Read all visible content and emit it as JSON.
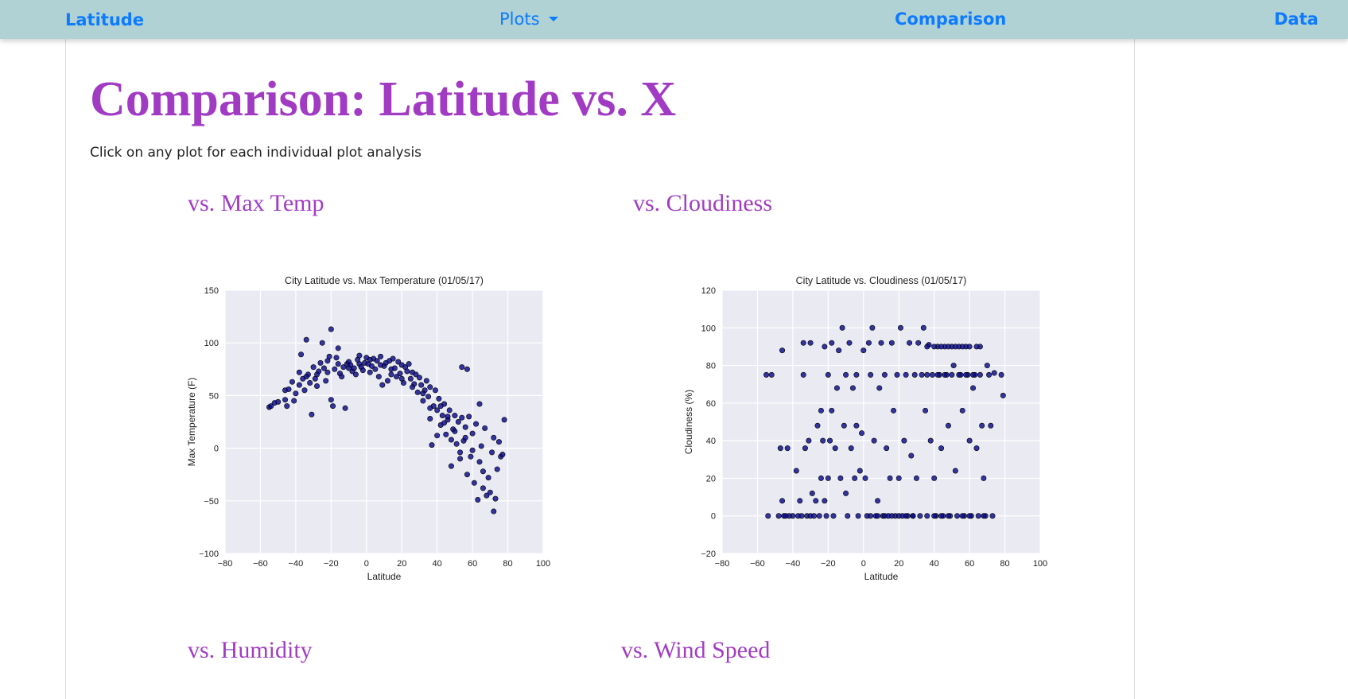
{
  "nav": {
    "brand": "Latitude",
    "plots_label": "Plots",
    "comparison_label": "Comparison",
    "data_label": "Data"
  },
  "main": {
    "title": "Comparison: Latitude vs. X",
    "subtitle": "Click on any plot for each individual plot analysis",
    "headings": [
      "vs. Max Temp",
      "vs. Cloudiness",
      "vs. Humidity",
      "vs. Wind Speed"
    ]
  },
  "colors": {
    "navbar_bg": "#b0d2d4",
    "link": "#0d7bff",
    "heading_purple": "#a23bc4",
    "plot_bg": "#eaeaf2",
    "marker": "#0b0b8c"
  },
  "chart_data": [
    {
      "type": "scatter",
      "title": "City Latitude vs. Max Temperature (01/05/17)",
      "xlabel": "Latitude",
      "ylabel": "Max Temperature (F)",
      "xlim": [
        -80,
        100
      ],
      "ylim": [
        -100,
        150
      ],
      "xticks": [
        -80,
        -60,
        -40,
        -20,
        0,
        20,
        40,
        60,
        80,
        100
      ],
      "yticks": [
        -100,
        -50,
        0,
        50,
        100,
        150
      ],
      "grid": true,
      "points": [
        [
          -55,
          39
        ],
        [
          -54,
          40
        ],
        [
          -52,
          43
        ],
        [
          -50,
          44
        ],
        [
          -46,
          55
        ],
        [
          -46,
          46
        ],
        [
          -45,
          40
        ],
        [
          -44,
          56
        ],
        [
          -42,
          63
        ],
        [
          -41,
          45
        ],
        [
          -40,
          52
        ],
        [
          -38,
          60
        ],
        [
          -37,
          89
        ],
        [
          -36,
          66
        ],
        [
          -35,
          55
        ],
        [
          -34,
          103
        ],
        [
          -33,
          70
        ],
        [
          -32,
          62
        ],
        [
          -31,
          32
        ],
        [
          -30,
          77
        ],
        [
          -29,
          66
        ],
        [
          -28,
          59
        ],
        [
          -27,
          73
        ],
        [
          -26,
          81
        ],
        [
          -25,
          100
        ],
        [
          -24,
          76
        ],
        [
          -23,
          64
        ],
        [
          -22,
          83
        ],
        [
          -21,
          87
        ],
        [
          -20,
          113
        ],
        [
          -20,
          46
        ],
        [
          -19,
          40
        ],
        [
          -18,
          75
        ],
        [
          -17,
          86
        ],
        [
          -16,
          95
        ],
        [
          -15,
          71
        ],
        [
          -14,
          68
        ],
        [
          -13,
          77
        ],
        [
          -12,
          38
        ],
        [
          -11,
          80
        ],
        [
          -10,
          82
        ],
        [
          -9,
          79
        ],
        [
          -8,
          73
        ],
        [
          -7,
          76
        ],
        [
          -6,
          70
        ],
        [
          -5,
          84
        ],
        [
          -4,
          80
        ],
        [
          -3,
          77
        ],
        [
          -2,
          74
        ],
        [
          -1,
          81
        ],
        [
          0,
          86
        ],
        [
          1,
          80
        ],
        [
          2,
          72
        ],
        [
          3,
          78
        ],
        [
          4,
          85
        ],
        [
          5,
          75
        ],
        [
          6,
          83
        ],
        [
          7,
          68
        ],
        [
          8,
          87
        ],
        [
          9,
          60
        ],
        [
          10,
          78
        ],
        [
          11,
          81
        ],
        [
          12,
          64
        ],
        [
          13,
          83
        ],
        [
          14,
          70
        ],
        [
          15,
          85
        ],
        [
          16,
          76
        ],
        [
          17,
          68
        ],
        [
          18,
          82
        ],
        [
          19,
          71
        ],
        [
          20,
          79
        ],
        [
          21,
          62
        ],
        [
          22,
          77
        ],
        [
          23,
          73
        ],
        [
          24,
          80
        ],
        [
          25,
          66
        ],
        [
          26,
          72
        ],
        [
          27,
          61
        ],
        [
          28,
          70
        ],
        [
          29,
          53
        ],
        [
          30,
          67
        ],
        [
          31,
          60
        ],
        [
          32,
          45
        ],
        [
          33,
          55
        ],
        [
          34,
          64
        ],
        [
          35,
          49
        ],
        [
          36,
          28
        ],
        [
          36,
          58
        ],
        [
          37,
          3
        ],
        [
          38,
          40
        ],
        [
          39,
          55
        ],
        [
          40,
          36
        ],
        [
          41,
          47
        ],
        [
          42,
          22
        ],
        [
          43,
          31
        ],
        [
          44,
          42
        ],
        [
          45,
          13
        ],
        [
          46,
          27
        ],
        [
          47,
          36
        ],
        [
          48,
          -17
        ],
        [
          49,
          18
        ],
        [
          50,
          31
        ],
        [
          51,
          4
        ],
        [
          52,
          25
        ],
        [
          53,
          -10
        ],
        [
          54,
          29
        ],
        [
          54,
          77
        ],
        [
          55,
          7
        ],
        [
          56,
          20
        ],
        [
          57,
          -25
        ],
        [
          57,
          75
        ],
        [
          58,
          30
        ],
        [
          59,
          -8
        ],
        [
          60,
          14
        ],
        [
          61,
          -33
        ],
        [
          62,
          23
        ],
        [
          63,
          -49
        ],
        [
          64,
          -13
        ],
        [
          64,
          42
        ],
        [
          65,
          2
        ],
        [
          66,
          -38
        ],
        [
          67,
          19
        ],
        [
          68,
          -45
        ],
        [
          69,
          -28
        ],
        [
          70,
          -42
        ],
        [
          71,
          -4
        ],
        [
          72,
          -60
        ],
        [
          72,
          10
        ],
        [
          73,
          -48
        ],
        [
          74,
          -20
        ],
        [
          75,
          6
        ],
        [
          76,
          -8
        ],
        [
          78,
          27
        ],
        [
          77,
          -6
        ],
        [
          53,
          -4
        ],
        [
          48,
          8
        ],
        [
          44,
          24
        ],
        [
          40,
          12
        ],
        [
          36,
          38
        ],
        [
          32,
          52
        ],
        [
          26,
          58
        ],
        [
          20,
          66
        ],
        [
          14,
          75
        ],
        [
          8,
          79
        ],
        [
          2,
          84
        ],
        [
          -4,
          88
        ],
        [
          -10,
          76
        ],
        [
          -16,
          80
        ],
        [
          -22,
          72
        ],
        [
          -28,
          70
        ],
        [
          -34,
          68
        ],
        [
          -38,
          72
        ],
        [
          66,
          -22
        ],
        [
          60,
          -2
        ],
        [
          56,
          10
        ],
        [
          50,
          16
        ],
        [
          46,
          30
        ],
        [
          42,
          40
        ]
      ]
    },
    {
      "type": "scatter",
      "title": "City Latitude vs. Cloudiness (01/05/17)",
      "xlabel": "Latitude",
      "ylabel": "Cloudiness (%)",
      "xlim": [
        -80,
        100
      ],
      "ylim": [
        -20,
        120
      ],
      "xticks": [
        -80,
        -60,
        -40,
        -20,
        0,
        20,
        40,
        60,
        80,
        100
      ],
      "yticks": [
        -20,
        0,
        20,
        40,
        60,
        80,
        100,
        120
      ],
      "grid": true,
      "points": [
        [
          -54,
          0
        ],
        [
          -55,
          75
        ],
        [
          -52,
          75
        ],
        [
          -47,
          36
        ],
        [
          -46,
          88
        ],
        [
          -46,
          8
        ],
        [
          -45,
          0
        ],
        [
          -43,
          36
        ],
        [
          -42,
          0
        ],
        [
          -40,
          0
        ],
        [
          -38,
          24
        ],
        [
          -37,
          0
        ],
        [
          -36,
          8
        ],
        [
          -35,
          0
        ],
        [
          -34,
          92
        ],
        [
          -34,
          75
        ],
        [
          -33,
          36
        ],
        [
          -32,
          0
        ],
        [
          -31,
          40
        ],
        [
          -30,
          0
        ],
        [
          -30,
          92
        ],
        [
          -29,
          12
        ],
        [
          -28,
          0
        ],
        [
          -27,
          8
        ],
        [
          -26,
          48
        ],
        [
          -25,
          0
        ],
        [
          -24,
          20
        ],
        [
          -24,
          56
        ],
        [
          -23,
          40
        ],
        [
          -22,
          8
        ],
        [
          -22,
          90
        ],
        [
          -21,
          0
        ],
        [
          -20,
          20
        ],
        [
          -20,
          75
        ],
        [
          -19,
          40
        ],
        [
          -18,
          56
        ],
        [
          -18,
          92
        ],
        [
          -17,
          0
        ],
        [
          -16,
          36
        ],
        [
          -15,
          68
        ],
        [
          -14,
          88
        ],
        [
          -13,
          20
        ],
        [
          -12,
          100
        ],
        [
          -11,
          48
        ],
        [
          -10,
          12
        ],
        [
          -10,
          75
        ],
        [
          -9,
          0
        ],
        [
          -8,
          92
        ],
        [
          -7,
          36
        ],
        [
          -6,
          68
        ],
        [
          -5,
          20
        ],
        [
          -4,
          48
        ],
        [
          -4,
          75
        ],
        [
          -3,
          0
        ],
        [
          -2,
          24
        ],
        [
          -1,
          44
        ],
        [
          0,
          88
        ],
        [
          1,
          20
        ],
        [
          2,
          0
        ],
        [
          3,
          92
        ],
        [
          4,
          75
        ],
        [
          5,
          100
        ],
        [
          6,
          40
        ],
        [
          7,
          0
        ],
        [
          8,
          8
        ],
        [
          9,
          68
        ],
        [
          10,
          92
        ],
        [
          11,
          0
        ],
        [
          12,
          75
        ],
        [
          13,
          36
        ],
        [
          14,
          0
        ],
        [
          15,
          20
        ],
        [
          16,
          92
        ],
        [
          17,
          56
        ],
        [
          18,
          0
        ],
        [
          19,
          75
        ],
        [
          20,
          20
        ],
        [
          21,
          100
        ],
        [
          22,
          0
        ],
        [
          23,
          40
        ],
        [
          24,
          75
        ],
        [
          25,
          0
        ],
        [
          26,
          92
        ],
        [
          27,
          32
        ],
        [
          28,
          0
        ],
        [
          29,
          75
        ],
        [
          30,
          20
        ],
        [
          31,
          92
        ],
        [
          32,
          0
        ],
        [
          33,
          75
        ],
        [
          34,
          100
        ],
        [
          35,
          56
        ],
        [
          36,
          0
        ],
        [
          37,
          91
        ],
        [
          38,
          40
        ],
        [
          39,
          75
        ],
        [
          40,
          20
        ],
        [
          41,
          0
        ],
        [
          42,
          90
        ],
        [
          43,
          75
        ],
        [
          44,
          36
        ],
        [
          45,
          0
        ],
        [
          46,
          90
        ],
        [
          47,
          75
        ],
        [
          48,
          48
        ],
        [
          49,
          0
        ],
        [
          50,
          90
        ],
        [
          51,
          80
        ],
        [
          52,
          24
        ],
        [
          53,
          0
        ],
        [
          54,
          90
        ],
        [
          55,
          75
        ],
        [
          56,
          56
        ],
        [
          57,
          0
        ],
        [
          58,
          90
        ],
        [
          59,
          75
        ],
        [
          60,
          40
        ],
        [
          61,
          0
        ],
        [
          62,
          68
        ],
        [
          63,
          75
        ],
        [
          64,
          36
        ],
        [
          65,
          0
        ],
        [
          66,
          90
        ],
        [
          67,
          48
        ],
        [
          68,
          20
        ],
        [
          69,
          0
        ],
        [
          70,
          80
        ],
        [
          71,
          75
        ],
        [
          72,
          48
        ],
        [
          73,
          0
        ],
        [
          74,
          76
        ],
        [
          78,
          75
        ],
        [
          79,
          64
        ],
        [
          -44,
          0
        ],
        [
          -48,
          0
        ],
        [
          4,
          0
        ],
        [
          8,
          0
        ],
        [
          12,
          0
        ],
        [
          16,
          0
        ],
        [
          20,
          0
        ],
        [
          24,
          0
        ],
        [
          28,
          0
        ],
        [
          40,
          0
        ],
        [
          44,
          0
        ],
        [
          48,
          0
        ],
        [
          56,
          0
        ],
        [
          60,
          0
        ],
        [
          68,
          0
        ],
        [
          36,
          90
        ],
        [
          40,
          90
        ],
        [
          44,
          90
        ],
        [
          48,
          90
        ],
        [
          52,
          90
        ],
        [
          56,
          90
        ],
        [
          60,
          90
        ],
        [
          64,
          90
        ],
        [
          36,
          75
        ],
        [
          42,
          75
        ],
        [
          46,
          75
        ],
        [
          50,
          75
        ],
        [
          54,
          75
        ],
        [
          58,
          75
        ],
        [
          62,
          75
        ],
        [
          66,
          75
        ]
      ]
    }
  ]
}
